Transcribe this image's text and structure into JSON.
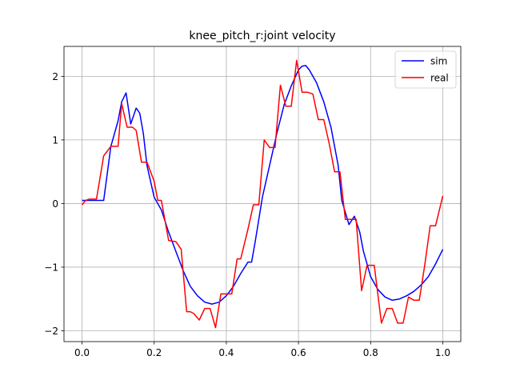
{
  "chart_data": {
    "type": "line",
    "title": "knee_pitch_r:joint velocity",
    "xlabel": "",
    "ylabel": "",
    "xlim": [
      -0.05,
      1.05
    ],
    "ylim": [
      -2.17,
      2.47
    ],
    "xticks": [
      0.0,
      0.2,
      0.4,
      0.6,
      0.8,
      1.0
    ],
    "xtick_labels": [
      "0.0",
      "0.2",
      "0.4",
      "0.6",
      "0.8",
      "1.0"
    ],
    "yticks": [
      -2,
      -1,
      0,
      1,
      2
    ],
    "ytick_labels": [
      "−2",
      "−1",
      "0",
      "1",
      "2"
    ],
    "grid": true,
    "legend_position": "top-right",
    "series": [
      {
        "name": "sim",
        "color": "#0000ff",
        "x": [
          0.0,
          0.02,
          0.04,
          0.06,
          0.08,
          0.09,
          0.1,
          0.11,
          0.122,
          0.135,
          0.15,
          0.16,
          0.17,
          0.18,
          0.2,
          0.22,
          0.24,
          0.26,
          0.28,
          0.3,
          0.32,
          0.34,
          0.36,
          0.38,
          0.4,
          0.42,
          0.44,
          0.46,
          0.47,
          0.48,
          0.5,
          0.52,
          0.54,
          0.56,
          0.58,
          0.6,
          0.61,
          0.62,
          0.63,
          0.65,
          0.67,
          0.69,
          0.71,
          0.72,
          0.74,
          0.755,
          0.77,
          0.78,
          0.8,
          0.82,
          0.84,
          0.86,
          0.88,
          0.9,
          0.92,
          0.94,
          0.96,
          0.98,
          1.0
        ],
        "y": [
          0.05,
          0.05,
          0.05,
          0.05,
          0.9,
          1.1,
          1.3,
          1.6,
          1.74,
          1.25,
          1.5,
          1.42,
          1.1,
          0.6,
          0.1,
          -0.1,
          -0.45,
          -0.75,
          -1.05,
          -1.3,
          -1.45,
          -1.55,
          -1.58,
          -1.55,
          -1.45,
          -1.3,
          -1.1,
          -0.92,
          -0.92,
          -0.6,
          0.1,
          0.6,
          1.1,
          1.55,
          1.85,
          2.1,
          2.16,
          2.17,
          2.1,
          1.9,
          1.6,
          1.2,
          0.6,
          0.05,
          -0.33,
          -0.2,
          -0.45,
          -0.75,
          -1.15,
          -1.35,
          -1.47,
          -1.52,
          -1.5,
          -1.45,
          -1.38,
          -1.28,
          -1.15,
          -0.95,
          -0.72
        ]
      },
      {
        "name": "real",
        "color": "#ff0000",
        "x": [
          0.0,
          0.01,
          0.02,
          0.04,
          0.06,
          0.08,
          0.1,
          0.11,
          0.125,
          0.14,
          0.15,
          0.165,
          0.18,
          0.2,
          0.21,
          0.22,
          0.24,
          0.26,
          0.275,
          0.29,
          0.3,
          0.31,
          0.325,
          0.34,
          0.355,
          0.37,
          0.385,
          0.4,
          0.415,
          0.43,
          0.44,
          0.46,
          0.475,
          0.49,
          0.505,
          0.52,
          0.535,
          0.55,
          0.565,
          0.58,
          0.595,
          0.61,
          0.625,
          0.64,
          0.655,
          0.67,
          0.685,
          0.7,
          0.715,
          0.73,
          0.745,
          0.76,
          0.775,
          0.79,
          0.81,
          0.83,
          0.845,
          0.86,
          0.875,
          0.89,
          0.905,
          0.92,
          0.935,
          0.95,
          0.965,
          0.98,
          1.0
        ],
        "y": [
          -0.02,
          0.05,
          0.07,
          0.07,
          0.75,
          0.9,
          0.9,
          1.57,
          1.2,
          1.2,
          1.15,
          0.65,
          0.65,
          0.35,
          0.05,
          0.05,
          -0.58,
          -0.6,
          -0.72,
          -1.7,
          -1.7,
          -1.73,
          -1.83,
          -1.65,
          -1.65,
          -1.95,
          -1.42,
          -1.42,
          -1.42,
          -0.87,
          -0.87,
          -0.4,
          -0.02,
          -0.02,
          1.0,
          0.88,
          0.88,
          1.86,
          1.53,
          1.53,
          2.25,
          1.75,
          1.75,
          1.72,
          1.32,
          1.32,
          0.95,
          0.5,
          0.5,
          -0.25,
          -0.25,
          -0.25,
          -1.37,
          -0.97,
          -0.97,
          -1.88,
          -1.65,
          -1.65,
          -1.88,
          -1.88,
          -1.47,
          -1.52,
          -1.52,
          -0.97,
          -0.35,
          -0.35,
          0.12
        ]
      }
    ]
  }
}
